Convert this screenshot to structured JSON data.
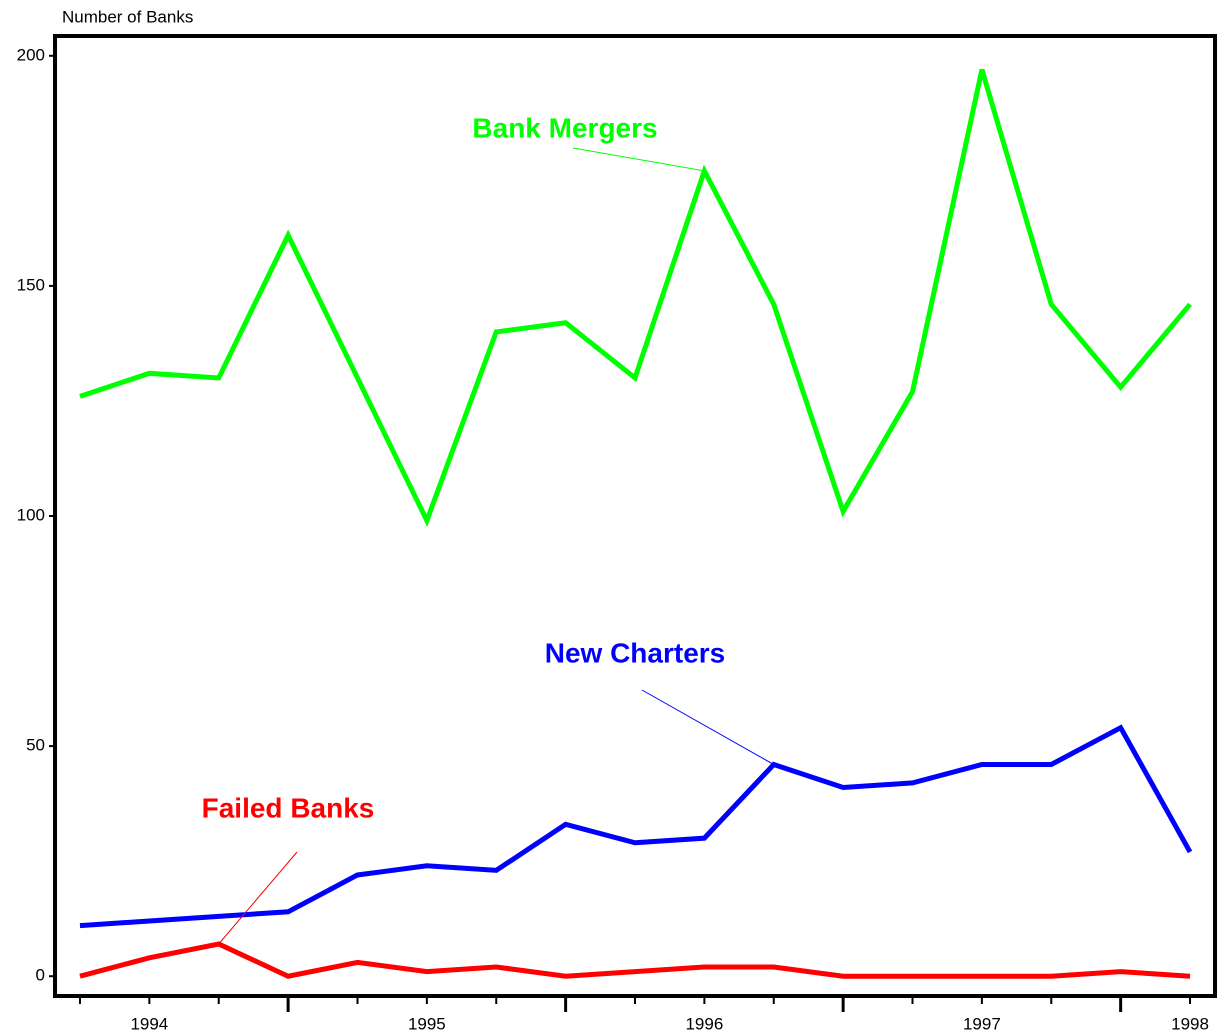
{
  "chart_data": {
    "type": "line",
    "y_label": "Number of Banks",
    "x": [
      1994.25,
      1994.5,
      1994.75,
      1995.0,
      1995.25,
      1995.5,
      1995.75,
      1996.0,
      1996.25,
      1996.5,
      1996.75,
      1997.0,
      1997.25,
      1997.5,
      1997.75,
      1998.0,
      1998.25
    ],
    "series": [
      {
        "name": "Bank Mergers",
        "color": "#00ff00",
        "values": [
          126,
          131,
          130,
          161,
          130,
          99,
          140,
          142,
          130,
          175,
          146,
          101,
          127,
          197,
          146,
          128,
          146
        ]
      },
      {
        "name": "New Charters",
        "color": "#0000ff",
        "values": [
          11,
          12,
          13,
          14,
          22,
          24,
          23,
          33,
          29,
          30,
          46,
          41,
          42,
          46,
          46,
          54,
          27
        ]
      },
      {
        "name": "Failed Banks",
        "color": "#ff0000",
        "values": [
          0,
          4,
          7,
          0,
          3,
          1,
          2,
          0,
          1,
          2,
          2,
          0,
          0,
          0,
          0,
          1,
          0
        ]
      }
    ],
    "xlim": [
      1994.16,
      1998.34
    ],
    "xticks": [
      {
        "value": 1994.5,
        "label": "1994"
      },
      {
        "value": 1995.5,
        "label": "1995"
      },
      {
        "value": 1996.5,
        "label": "1996"
      },
      {
        "value": 1997.5,
        "label": "1997"
      },
      {
        "value": 1998.25,
        "label": "1998"
      }
    ],
    "major_xticks": [
      1995,
      1996,
      1997,
      1998
    ],
    "ylim": [
      -4.3,
      204.3
    ],
    "yticks": [
      0,
      50,
      100,
      150,
      200
    ],
    "grid": false
  }
}
